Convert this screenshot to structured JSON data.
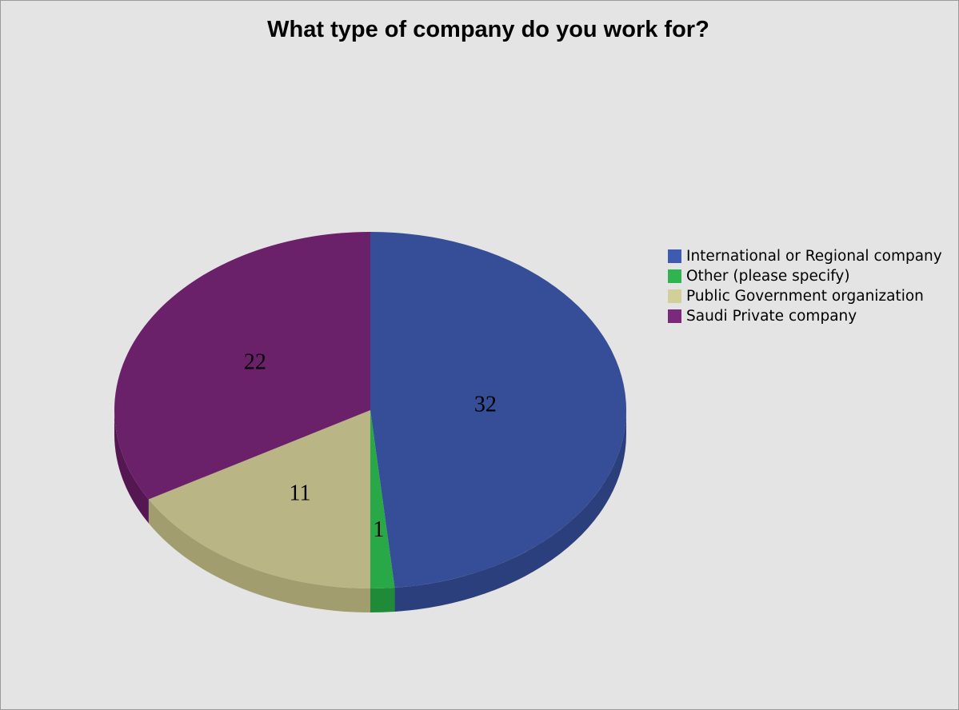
{
  "chart_data": {
    "type": "pie",
    "title": "What type of company do you work for?",
    "legend_position": "right",
    "slices": [
      {
        "label": "International or Regional company",
        "value": 32,
        "color": "#354e97",
        "side_color": "#2b3f7c"
      },
      {
        "label": "Other (please specify)",
        "value": 1,
        "color": "#29a847",
        "side_color": "#1f8a38"
      },
      {
        "label": "Public Government organization",
        "value": 11,
        "color": "#b9b585",
        "side_color": "#a19d6e"
      },
      {
        "label": "Saudi Private company",
        "value": 22,
        "color": "#6b2169",
        "side_color": "#541752"
      }
    ],
    "legend_colors": [
      "#3d5bb0",
      "#2fb44f",
      "#d2cf99",
      "#7a2a7a"
    ],
    "3d": true
  }
}
